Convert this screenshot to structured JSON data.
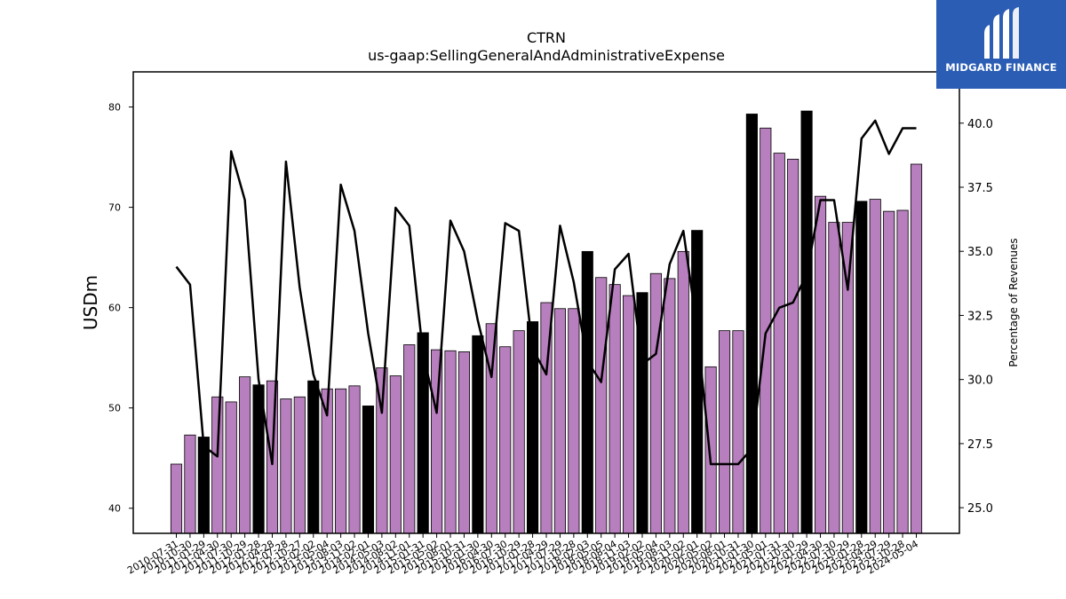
{
  "brand": {
    "name": "MIDGARD FINANCE"
  },
  "chart_data": {
    "type": "bar",
    "title": "CTRN",
    "subtitle": "us-gaap:SellingGeneralAndAdministrativeExpense",
    "ylabel": "USDm",
    "y2label": "Percentage of Revenues",
    "ylim": [
      37.5,
      83.5
    ],
    "y2lim": [
      24.0,
      42.0
    ],
    "yticks": [
      40,
      50,
      60,
      70,
      80
    ],
    "y2ticks": [
      25.0,
      27.5,
      30.0,
      32.5,
      35.0,
      37.5,
      40.0
    ],
    "colors": {
      "bar": "#b77fbd",
      "highlight_bar": "#000000",
      "line": "#000000"
    },
    "tick_labels": [
      "2010-07-31",
      "2010-10-30",
      "2011-01-29",
      "2011-04-30",
      "2011-07-30",
      "2011-10-29",
      "2012-01-28",
      "2012-04-28",
      "2012-07-28",
      "2012-10-27",
      "2013-02-02",
      "2013-05-04",
      "2013-08-03",
      "2013-11-02",
      "2014-02-01",
      "2014-05-03",
      "2014-08-02",
      "2014-11-01",
      "2015-01-31",
      "2015-05-02",
      "2015-08-01",
      "2015-10-31",
      "2016-01-30",
      "2016-04-30",
      "2016-07-30",
      "2016-10-29",
      "2017-01-28",
      "2017-04-29",
      "2017-07-29",
      "2017-10-28",
      "2018-02-03",
      "2018-05-05",
      "2018-08-04",
      "2018-11-03",
      "2019-02-02",
      "2019-05-04",
      "2019-08-03",
      "2019-11-02",
      "2020-02-01",
      "2020-05-02",
      "2020-08-01",
      "2020-10-31",
      "2021-01-30",
      "2021-05-01",
      "2021-07-31",
      "2021-10-30",
      "2022-01-29",
      "2022-04-30",
      "2022-07-30",
      "2022-10-29",
      "2023-01-28",
      "2023-04-29",
      "2023-07-29",
      "2023-10-28",
      "2024-05-04"
    ],
    "values": [
      44.4,
      47.3,
      47.1,
      51.1,
      50.6,
      53.1,
      52.3,
      52.7,
      50.9,
      51.1,
      52.7,
      51.9,
      51.9,
      52.2,
      50.2,
      54.0,
      53.2,
      56.3,
      57.5,
      55.8,
      55.7,
      55.6,
      57.2,
      58.4,
      56.1,
      57.7,
      58.6,
      60.5,
      59.9,
      59.9,
      65.6,
      63.0,
      62.3,
      61.2,
      61.5,
      63.4,
      62.9,
      65.6,
      67.7,
      54.1,
      57.7,
      57.7,
      79.3,
      77.9,
      75.4,
      74.8,
      79.6,
      71.1,
      68.5,
      68.5,
      70.6,
      70.8,
      69.6,
      69.7,
      74.3
    ],
    "highlight": [
      false,
      false,
      true,
      false,
      false,
      false,
      true,
      false,
      false,
      false,
      true,
      false,
      false,
      false,
      true,
      false,
      false,
      false,
      true,
      false,
      false,
      false,
      true,
      false,
      false,
      false,
      true,
      false,
      false,
      false,
      true,
      false,
      false,
      false,
      true,
      false,
      false,
      false,
      true,
      false,
      false,
      false,
      true,
      false,
      false,
      false,
      true,
      false,
      false,
      false,
      true,
      false,
      false,
      false,
      false
    ],
    "pct_revenues": [
      34.4,
      33.7,
      27.4,
      27.0,
      38.9,
      37.0,
      30.0,
      26.7,
      38.5,
      33.6,
      30.2,
      28.6,
      37.6,
      35.8,
      31.8,
      28.7,
      36.7,
      36.0,
      31.0,
      28.7,
      36.2,
      35.0,
      32.3,
      30.1,
      36.1,
      35.8,
      31.2,
      30.2,
      36.0,
      33.8,
      30.7,
      29.9,
      34.3,
      34.9,
      30.6,
      31.0,
      34.5,
      35.8,
      32.0,
      26.7,
      26.7,
      26.7,
      27.3,
      31.8,
      32.8,
      33.0,
      34.1,
      37.0,
      37.0,
      33.5,
      39.4,
      40.1,
      38.8,
      39.8,
      39.8
    ]
  }
}
